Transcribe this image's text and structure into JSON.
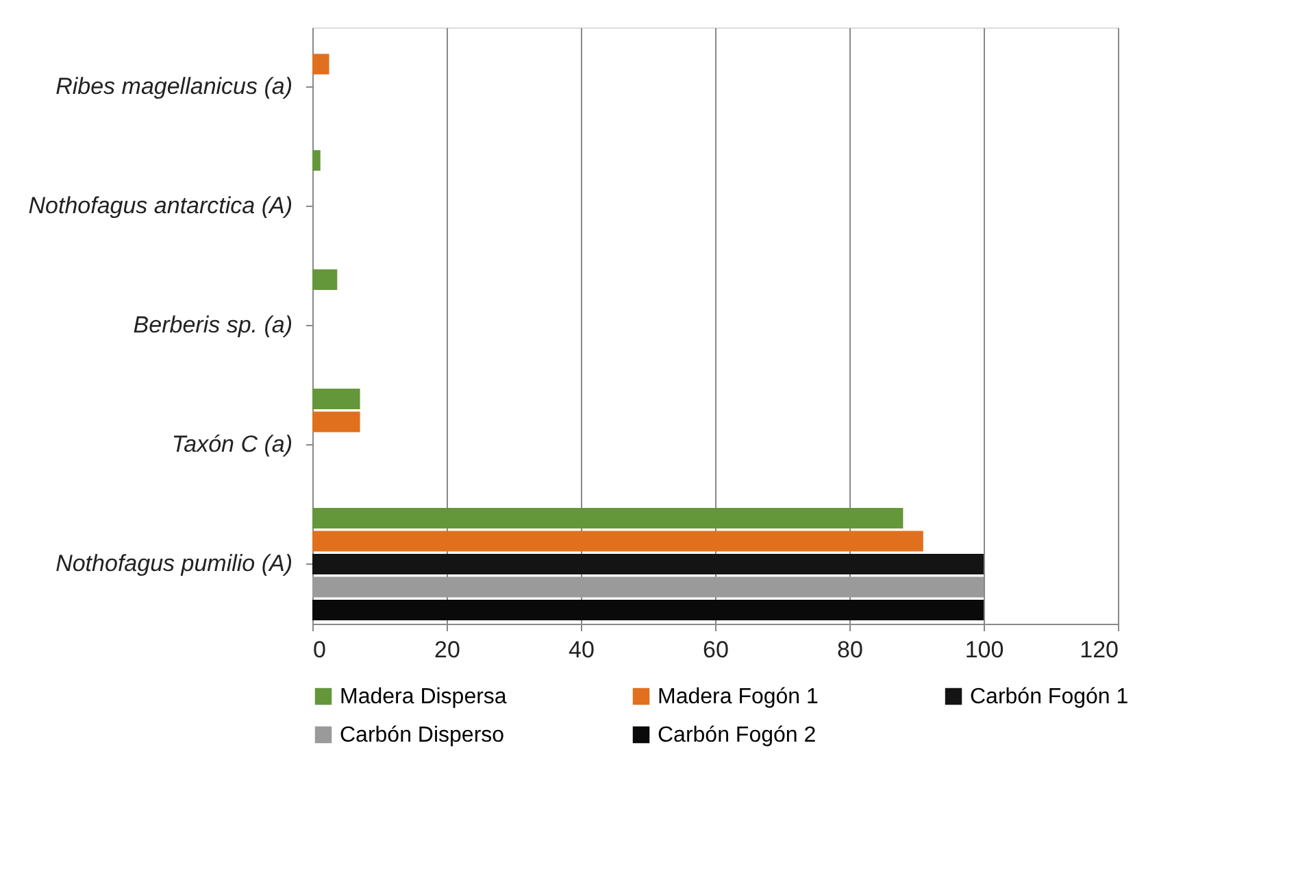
{
  "chart_data": {
    "type": "bar",
    "orientation": "horizontal",
    "categories": [
      "Ribes magellanicus  (a)",
      "Nothofagus antarctica  (A)",
      "Berberis sp.  (a)",
      "Taxón C (a)",
      "Nothofagus pumilio  (A)"
    ],
    "series": [
      {
        "name": "Madera Dispersa",
        "color": "#64963a",
        "values": [
          null,
          1.2,
          3.7,
          7.1,
          88
        ]
      },
      {
        "name": "Madera Fogón 1",
        "color": "#e0701e",
        "values": [
          2.5,
          null,
          null,
          7.1,
          91
        ]
      },
      {
        "name": "Carbón Fogón 1",
        "color": "#141414",
        "values": [
          null,
          null,
          null,
          null,
          100
        ]
      },
      {
        "name": "Carbón Disperso",
        "color": "#9a9a9a",
        "values": [
          null,
          null,
          null,
          null,
          100
        ]
      },
      {
        "name": "Carbón Fogón 2",
        "color": "#0a0a0a",
        "values": [
          null,
          null,
          null,
          null,
          100
        ]
      }
    ],
    "xlim": [
      0,
      120
    ],
    "xticks": [
      0,
      20,
      40,
      60,
      80,
      100,
      120
    ],
    "grid": "x",
    "legend": "bottom"
  }
}
